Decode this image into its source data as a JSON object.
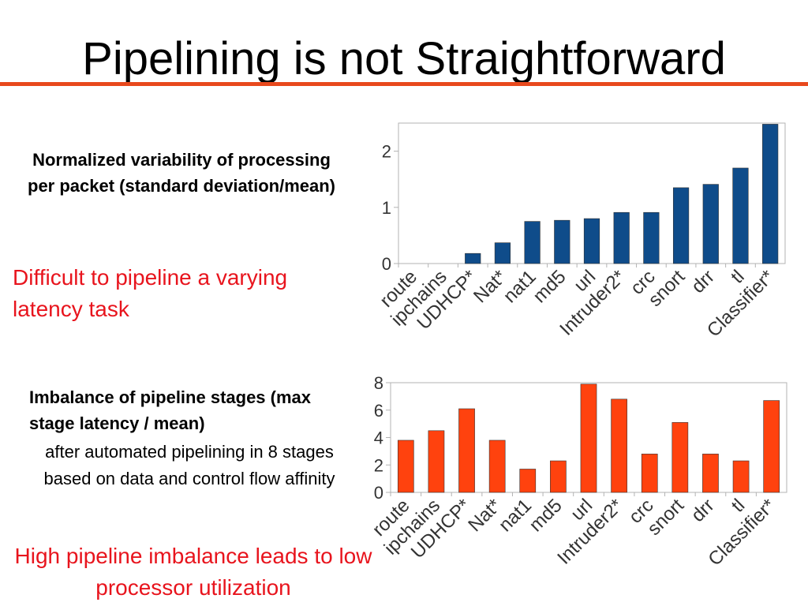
{
  "slide": {
    "title": "Pipelining is not Straightforward",
    "accent_color": "#E8491D",
    "text_red_color": "#E8141D",
    "caption_top": "Normalized variability of processing per packet (standard deviation/mean)",
    "note_top": "Difficult to pipeline a varying latency task",
    "caption_bottom": "Imbalance of pipeline stages (max stage latency / mean)",
    "caption_bottom_sub": "after automated pipelining in 8 stages based on data and control flow affinity",
    "note_bottom": "High pipeline imbalance leads to low processor utilization"
  },
  "chart_data": [
    {
      "type": "bar",
      "categories": [
        "route",
        "ipchains",
        "UDHCP*",
        "Nat*",
        "nat1",
        "md5",
        "url",
        "Intruder2*",
        "crc",
        "snort",
        "drr",
        "tl",
        "Classifier*"
      ],
      "values": [
        0,
        0,
        0.18,
        0.37,
        0.75,
        0.77,
        0.8,
        0.91,
        0.91,
        1.35,
        1.41,
        1.7,
        2.48
      ],
      "ylim": [
        0,
        2.5
      ],
      "yticks": [
        0,
        1,
        2
      ],
      "bar_color": "#0F4C8A",
      "grid": false
    },
    {
      "type": "bar",
      "categories": [
        "route",
        "ipchains",
        "UDHCP*",
        "Nat*",
        "nat1",
        "md5",
        "url",
        "Intruder2*",
        "crc",
        "snort",
        "drr",
        "tl",
        "Classifier*"
      ],
      "values": [
        3.8,
        4.5,
        6.1,
        3.8,
        1.7,
        2.3,
        7.9,
        6.8,
        2.8,
        5.1,
        2.8,
        2.3,
        6.7
      ],
      "ylim": [
        0,
        8
      ],
      "yticks": [
        0,
        2,
        4,
        6,
        8
      ],
      "bar_color": "#FF420E",
      "grid": false
    }
  ]
}
